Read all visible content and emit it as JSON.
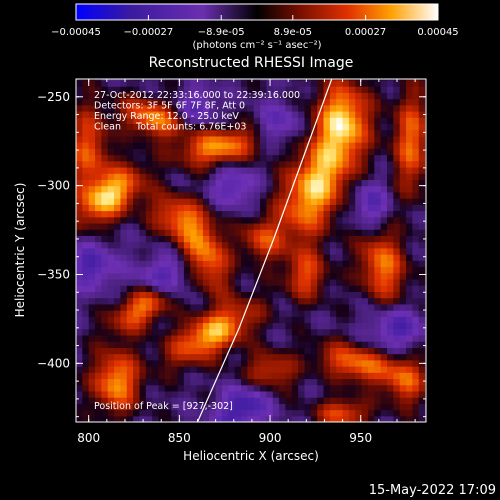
{
  "chart_data": {
    "type": "heatmap",
    "title": "Reconstructed RHESSI Image",
    "xlabel": "Heliocentric X (arcsec)",
    "ylabel": "Heliocentric Y (arcsec)",
    "xlim": [
      793,
      986
    ],
    "ylim": [
      -433,
      -240
    ],
    "x_ticks": [
      800,
      850,
      900,
      950
    ],
    "y_ticks": [
      -250,
      -300,
      -350,
      -400
    ],
    "colorbar": {
      "ticks": [
        "-0.00045",
        "-0.00027",
        "-8.9e-05",
        "8.9e-05",
        "0.00027",
        "0.00045"
      ],
      "range": [
        -0.00045,
        0.00045
      ],
      "unit": "(photons cm⁻² s⁻¹ asec⁻²)"
    },
    "annotations": [
      "27-Oct-2012 22:33:16.000 to 22:39:16.000",
      "Detectors: 3F 5F 6F 7F 8F, Att 0",
      "Energy Range: 12.0 - 25.0 keV",
      "Clean     Total counts: 6.76E+03"
    ],
    "peak_label": "Position of Peak = [927,-302]",
    "peak": [
      927,
      -302
    ],
    "limb_curve": [
      [
        860,
        -433
      ],
      [
        883,
        -380
      ],
      [
        902,
        -330
      ],
      [
        918,
        -285
      ],
      [
        934,
        -240
      ]
    ],
    "hotspots": [
      {
        "x": 812,
        "y": -305,
        "a": 0.92,
        "sx": 14,
        "sy": 8,
        "ang": 40
      },
      {
        "x": 835,
        "y": -262,
        "a": 0.75,
        "sx": 12,
        "sy": 7,
        "ang": -20
      },
      {
        "x": 800,
        "y": -280,
        "a": 0.6,
        "sx": 8,
        "sy": 18,
        "ang": 0
      },
      {
        "x": 850,
        "y": -318,
        "a": 0.65,
        "sx": 12,
        "sy": 8,
        "ang": -30
      },
      {
        "x": 872,
        "y": -278,
        "a": 0.8,
        "sx": 15,
        "sy": 7,
        "ang": 10
      },
      {
        "x": 865,
        "y": -340,
        "a": 0.7,
        "sx": 8,
        "sy": 14,
        "ang": 20
      },
      {
        "x": 830,
        "y": -368,
        "a": 0.72,
        "sx": 14,
        "sy": 7,
        "ang": 35
      },
      {
        "x": 868,
        "y": -383,
        "a": 0.88,
        "sx": 18,
        "sy": 8,
        "ang": 30
      },
      {
        "x": 815,
        "y": -410,
        "a": 0.8,
        "sx": 9,
        "sy": 12,
        "ang": 0
      },
      {
        "x": 925,
        "y": -300,
        "a": 0.95,
        "sx": 11,
        "sy": 22,
        "ang": -25
      },
      {
        "x": 940,
        "y": -262,
        "a": 0.85,
        "sx": 10,
        "sy": 15,
        "ang": 0
      },
      {
        "x": 962,
        "y": -345,
        "a": 0.7,
        "sx": 9,
        "sy": 14,
        "ang": 10
      },
      {
        "x": 920,
        "y": -350,
        "a": 0.55,
        "sx": 8,
        "sy": 10,
        "ang": 0
      },
      {
        "x": 948,
        "y": -400,
        "a": 0.72,
        "sx": 15,
        "sy": 7,
        "ang": -15
      },
      {
        "x": 978,
        "y": -275,
        "a": 0.65,
        "sx": 7,
        "sy": 20,
        "ang": 0
      },
      {
        "x": 900,
        "y": -405,
        "a": 0.55,
        "sx": 10,
        "sy": 8,
        "ang": 0
      },
      {
        "x": 940,
        "y": -428,
        "a": 0.6,
        "sx": 10,
        "sy": 6,
        "ang": 0
      },
      {
        "x": 895,
        "y": -330,
        "a": 0.5,
        "sx": 8,
        "sy": 8,
        "ang": 0
      },
      {
        "x": 975,
        "y": -410,
        "a": 0.55,
        "sx": 8,
        "sy": 10,
        "ang": 0
      }
    ],
    "coldspots": [
      {
        "x": 842,
        "y": -352,
        "a": 0.55,
        "sx": 10,
        "sy": 8,
        "ang": 0
      },
      {
        "x": 885,
        "y": -425,
        "a": 0.6,
        "sx": 12,
        "sy": 8,
        "ang": 40
      },
      {
        "x": 802,
        "y": -345,
        "a": 0.5,
        "sx": 9,
        "sy": 9,
        "ang": 0
      },
      {
        "x": 970,
        "y": -380,
        "a": 0.5,
        "sx": 10,
        "sy": 8,
        "ang": 0
      },
      {
        "x": 880,
        "y": -300,
        "a": 0.45,
        "sx": 8,
        "sy": 8,
        "ang": 0
      },
      {
        "x": 905,
        "y": -265,
        "a": 0.4,
        "sx": 8,
        "sy": 8,
        "ang": 0
      },
      {
        "x": 955,
        "y": -310,
        "a": 0.45,
        "sx": 7,
        "sy": 9,
        "ang": 0
      },
      {
        "x": 860,
        "y": -255,
        "a": 0.4,
        "sx": 7,
        "sy": 7,
        "ang": 0
      }
    ]
  },
  "footer": {
    "timestamp": "15-May-2022 17:09"
  }
}
